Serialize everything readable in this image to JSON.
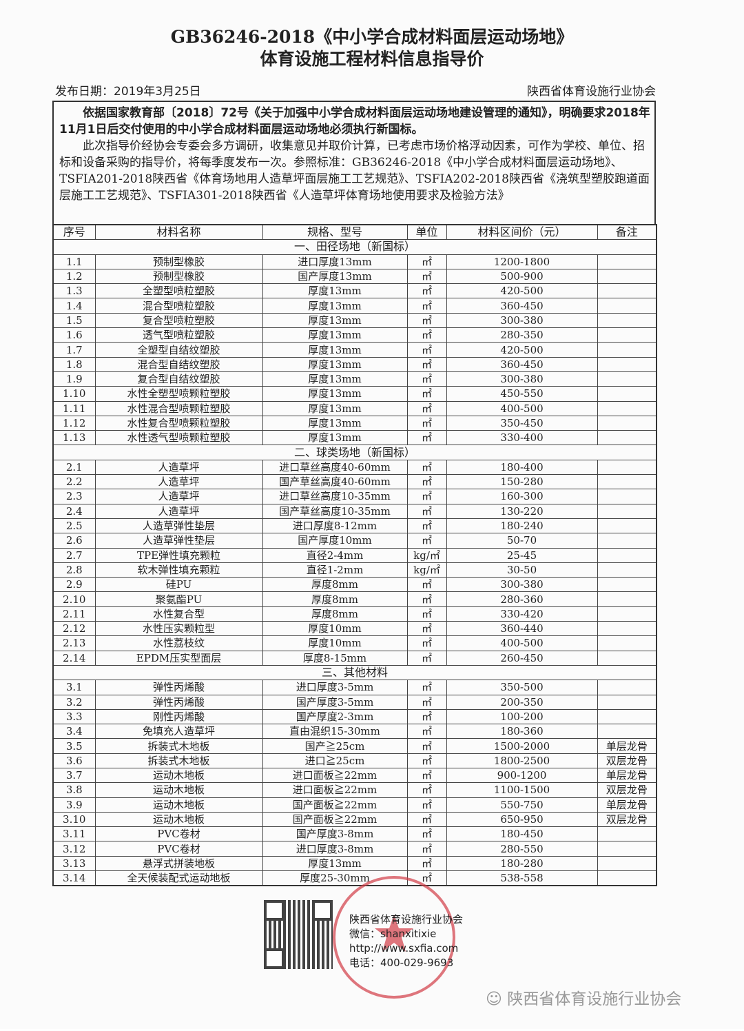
{
  "title_line1": "GB36246-2018《中小学合成材料面层运动场地》",
  "title_line2": "体育设施工程材料信息指导价",
  "publish_date": "发布日期：2019年3月25日",
  "publisher": "陕西省体育设施行业协会",
  "intro_bold": "依据国家教育部〔2018〕72号《关于加强中小学合成材料面层运动场地建设管理的通知》，明确要求2018年11月1日后交付使用的中小学合成材料面层运动场地必须执行新国标。",
  "intro_text": "此次指导价经协会专委会多方调研，收集意见并取价计算，已考虑市场价格浮动因素，可作为学校、单位、招标和设备采购的指导价，将每季度发布一次。参照标准：GB36246-2018《中小学合成材料面层运动场地》、TSFIA201-2018陕西省《体育场地用人造草坪面层施工工艺规范》、TSFIA202-2018陕西省《浇筑型塑胶跑道面层施工工艺规范》、TSFIA301-2018陕西省《人造草坪体育场地使用要求及检验方法》",
  "table": {
    "headers": [
      "序号",
      "材料名称",
      "规格、型号",
      "单位",
      "材料区间价（元）",
      "备注"
    ],
    "sections": [
      {
        "title": "一、田径场地（新国标）",
        "rows": [
          [
            "1.1",
            "预制型橡胶",
            "进口厚度13mm",
            "㎡",
            "1200-1800",
            ""
          ],
          [
            "1.2",
            "预制型橡胶",
            "国产厚度13mm",
            "㎡",
            "500-900",
            ""
          ],
          [
            "1.3",
            "全塑型喷粒塑胶",
            "厚度13mm",
            "㎡",
            "420-500",
            ""
          ],
          [
            "1.4",
            "混合型喷粒塑胶",
            "厚度13mm",
            "㎡",
            "360-450",
            ""
          ],
          [
            "1.5",
            "复合型喷粒塑胶",
            "厚度13mm",
            "㎡",
            "300-380",
            ""
          ],
          [
            "1.6",
            "透气型喷粒塑胶",
            "厚度13mm",
            "㎡",
            "280-350",
            ""
          ],
          [
            "1.7",
            "全塑型自结纹塑胶",
            "厚度13mm",
            "㎡",
            "420-500",
            ""
          ],
          [
            "1.8",
            "混合型自结纹塑胶",
            "厚度13mm",
            "㎡",
            "360-450",
            ""
          ],
          [
            "1.9",
            "复合型自结纹塑胶",
            "厚度13mm",
            "㎡",
            "300-380",
            ""
          ],
          [
            "1.10",
            "水性全塑型喷颗粒塑胶",
            "厚度13mm",
            "㎡",
            "450-550",
            ""
          ],
          [
            "1.11",
            "水性混合型喷颗粒塑胶",
            "厚度13mm",
            "㎡",
            "400-500",
            ""
          ],
          [
            "1.12",
            "水性复合型喷颗粒塑胶",
            "厚度13mm",
            "㎡",
            "350-450",
            ""
          ],
          [
            "1.13",
            "水性透气型喷颗粒塑胶",
            "厚度13mm",
            "㎡",
            "330-400",
            ""
          ]
        ]
      },
      {
        "title": "二、球类场地（新国标）",
        "rows": [
          [
            "2.1",
            "人造草坪",
            "进口草丝高度40-60mm",
            "㎡",
            "180-400",
            ""
          ],
          [
            "2.2",
            "人造草坪",
            "国产草丝高度40-60mm",
            "㎡",
            "150-280",
            ""
          ],
          [
            "2.3",
            "人造草坪",
            "进口草丝高度10-35mm",
            "㎡",
            "160-300",
            ""
          ],
          [
            "2.4",
            "人造草坪",
            "国产草丝高度10-35mm",
            "㎡",
            "130-220",
            ""
          ],
          [
            "2.5",
            "人造草弹性垫层",
            "进口厚度8-12mm",
            "㎡",
            "180-240",
            ""
          ],
          [
            "2.6",
            "人造草弹性垫层",
            "国产厚度10mm",
            "㎡",
            "50-70",
            ""
          ],
          [
            "2.7",
            "TPE弹性填充颗粒",
            "直径2-4mm",
            "kg/㎡",
            "25-45",
            ""
          ],
          [
            "2.8",
            "软木弹性填充颗粒",
            "直径1-2mm",
            "kg/㎡",
            "30-50",
            ""
          ],
          [
            "2.9",
            "硅PU",
            "厚度8mm",
            "㎡",
            "300-380",
            ""
          ],
          [
            "2.10",
            "聚氨酯PU",
            "厚度8mm",
            "㎡",
            "280-360",
            ""
          ],
          [
            "2.11",
            "水性复合型",
            "厚度8mm",
            "㎡",
            "330-420",
            ""
          ],
          [
            "2.12",
            "水性压实颗粒型",
            "厚度10mm",
            "㎡",
            "360-440",
            ""
          ],
          [
            "2.13",
            "水性荔枝纹",
            "厚度10mm",
            "㎡",
            "400-500",
            ""
          ],
          [
            "2.14",
            "EPDM压实型面层",
            "厚度8-15mm",
            "㎡",
            "260-450",
            ""
          ]
        ]
      },
      {
        "title": "三、其他材料",
        "rows": [
          [
            "3.1",
            "弹性丙烯酸",
            "进口厚度3-5mm",
            "㎡",
            "350-500",
            ""
          ],
          [
            "3.2",
            "弹性丙烯酸",
            "国产厚度3-5mm",
            "㎡",
            "200-350",
            ""
          ],
          [
            "3.3",
            "刚性丙烯酸",
            "国产厚度2-3mm",
            "㎡",
            "100-200",
            ""
          ],
          [
            "3.4",
            "免填充人造草坪",
            "直由混织15-30mm",
            "㎡",
            "180-360",
            ""
          ],
          [
            "3.5",
            "拆装式木地板",
            "国产≧25cm",
            "㎡",
            "1500-2000",
            "单层龙骨"
          ],
          [
            "3.6",
            "拆装式木地板",
            "进口≧25cm",
            "㎡",
            "1800-2500",
            "双层龙骨"
          ],
          [
            "3.7",
            "运动木地板",
            "进口面板≧22mm",
            "㎡",
            "900-1200",
            "单层龙骨"
          ],
          [
            "3.8",
            "运动木地板",
            "进口面板≧22mm",
            "㎡",
            "1100-1500",
            "双层龙骨"
          ],
          [
            "3.9",
            "运动木地板",
            "国产面板≧22mm",
            "㎡",
            "550-750",
            "单层龙骨"
          ],
          [
            "3.10",
            "运动木地板",
            "国产面板≧22mm",
            "㎡",
            "650-950",
            "双层龙骨"
          ],
          [
            "3.11",
            "PVC卷材",
            "国产厚度3-8mm",
            "㎡",
            "180-450",
            ""
          ],
          [
            "3.12",
            "PVC卷材",
            "进口厚度3-8mm",
            "㎡",
            "280-550",
            ""
          ],
          [
            "3.13",
            "悬浮式拼装地板",
            "厚度13mm",
            "㎡",
            "180-280",
            ""
          ],
          [
            "3.14",
            "全天候装配式运动地板",
            "厚度25-30mm",
            "㎡",
            "538-558",
            ""
          ]
        ]
      }
    ]
  },
  "footer": {
    "org": "陕西省体育设施行业协会",
    "wechat": "微信：shanxitixie",
    "website": "http://www.sxfia.com",
    "phone": "电话：400-029-9693",
    "stamp_text": "陕西省体育设施行业协会 6100000423432",
    "watermark": "陕西省体育设施行业协会"
  },
  "colors": {
    "stamp": "#d23c46"
  }
}
